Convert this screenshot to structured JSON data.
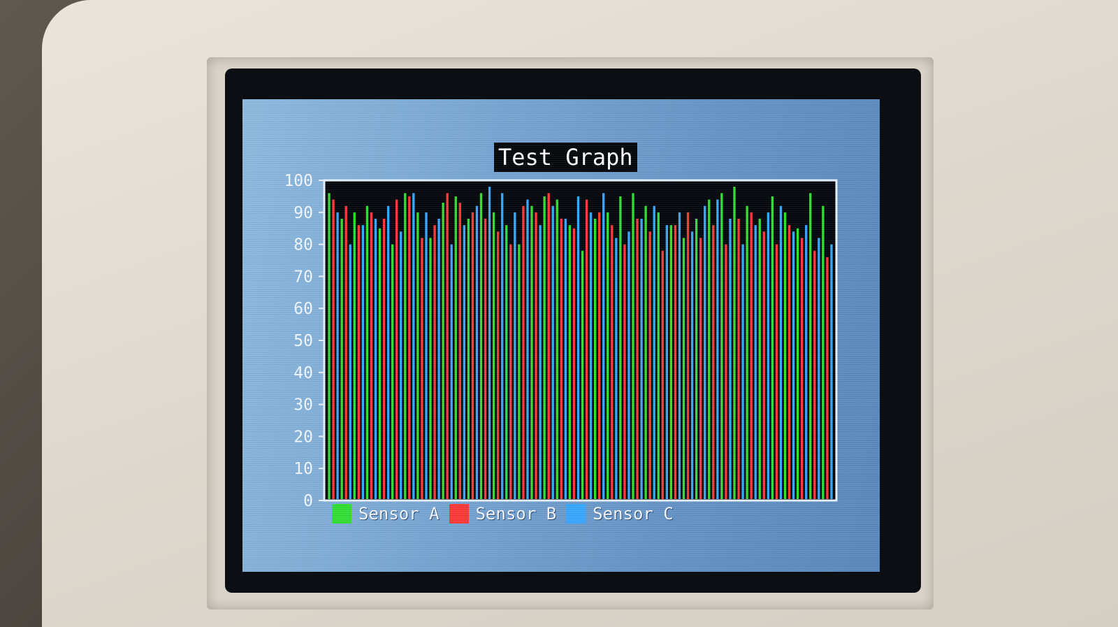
{
  "chart_data": {
    "type": "bar",
    "title": "Test Graph",
    "xlabel": "",
    "ylabel": "",
    "ylim": [
      0,
      100
    ],
    "yticks": [
      "0",
      "10",
      "20",
      "30",
      "40",
      "50",
      "60",
      "70",
      "80",
      "90",
      "100"
    ],
    "grid": false,
    "legend_position": "bottom-left",
    "series": [
      {
        "name": "Sensor A",
        "color": "#33e033",
        "values": [
          96,
          88,
          90,
          92,
          85,
          80,
          96,
          90,
          82,
          93,
          95,
          88,
          96,
          90,
          86,
          80,
          92,
          95,
          94,
          86,
          78,
          88,
          90,
          95,
          96,
          92,
          90,
          86,
          82,
          88,
          94,
          96,
          98,
          92,
          88,
          95,
          90,
          85,
          96,
          92
        ]
      },
      {
        "name": "Sensor B",
        "color": "#ff3a3a",
        "values": [
          94,
          92,
          86,
          90,
          88,
          94,
          95,
          82,
          86,
          96,
          93,
          90,
          88,
          84,
          80,
          92,
          90,
          96,
          88,
          85,
          94,
          90,
          86,
          80,
          88,
          84,
          78,
          86,
          90,
          82,
          86,
          80,
          88,
          90,
          84,
          80,
          86,
          82,
          78,
          76
        ]
      },
      {
        "name": "Sensor C",
        "color": "#3aa8ff",
        "values": [
          90,
          80,
          86,
          88,
          92,
          84,
          96,
          90,
          88,
          80,
          86,
          92,
          98,
          96,
          90,
          94,
          86,
          92,
          88,
          95,
          90,
          96,
          82,
          84,
          88,
          92,
          86,
          90,
          84,
          92,
          94,
          88,
          80,
          86,
          90,
          92,
          84,
          86,
          82,
          80
        ]
      }
    ]
  }
}
